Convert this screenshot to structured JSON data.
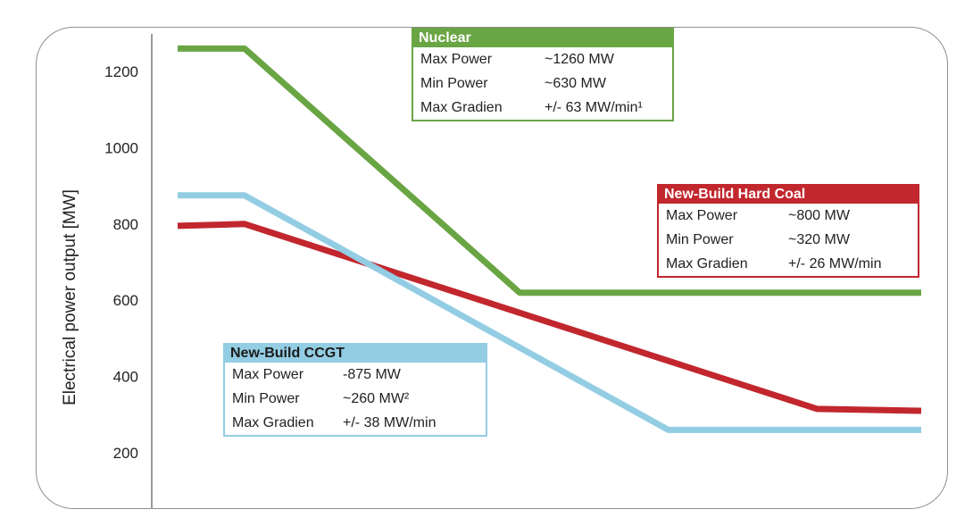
{
  "chart_data": {
    "type": "line",
    "ylabel": "Electrical power output [MW]",
    "xlabel": "",
    "ylim": [
      100,
      1300
    ],
    "yticks": [
      200,
      400,
      600,
      800,
      1000,
      1200
    ],
    "grid": false,
    "legend": "boxes",
    "series": [
      {
        "name": "Nuclear",
        "color": "#6aa544",
        "points": [
          [
            0,
            1260
          ],
          [
            0.09,
            1260
          ],
          [
            0.46,
            620
          ],
          [
            1,
            620
          ]
        ]
      },
      {
        "name": "New-Build Hard Coal",
        "color": "#c1272d",
        "points": [
          [
            0,
            795
          ],
          [
            0.09,
            800
          ],
          [
            0.86,
            315
          ],
          [
            1,
            310
          ]
        ]
      },
      {
        "name": "New-Build CCGT",
        "color": "#93cde3",
        "points": [
          [
            0,
            875
          ],
          [
            0.09,
            875
          ],
          [
            0.66,
            260
          ],
          [
            1,
            260
          ]
        ]
      }
    ]
  },
  "boxes": {
    "nuclear": {
      "title": "Nuclear",
      "rows": [
        {
          "label": "Max Power",
          "value": "~1260 MW"
        },
        {
          "label": "Min Power",
          "value": "~630 MW"
        },
        {
          "label": "Max Gradien",
          "value": "+/- 63 MW/min¹"
        }
      ]
    },
    "coal": {
      "title": "New-Build Hard Coal",
      "rows": [
        {
          "label": "Max Power",
          "value": "~800 MW"
        },
        {
          "label": "Min Power",
          "value": "~320 MW"
        },
        {
          "label": "Max Gradien",
          "value": "+/- 26 MW/min"
        }
      ]
    },
    "ccgt": {
      "title": "New-Build CCGT",
      "rows": [
        {
          "label": "Max Power",
          "value": "-875 MW"
        },
        {
          "label": "Min Power",
          "value": "~260 MW²"
        },
        {
          "label": "Max Gradien",
          "value": "+/- 38 MW/min"
        }
      ]
    }
  }
}
